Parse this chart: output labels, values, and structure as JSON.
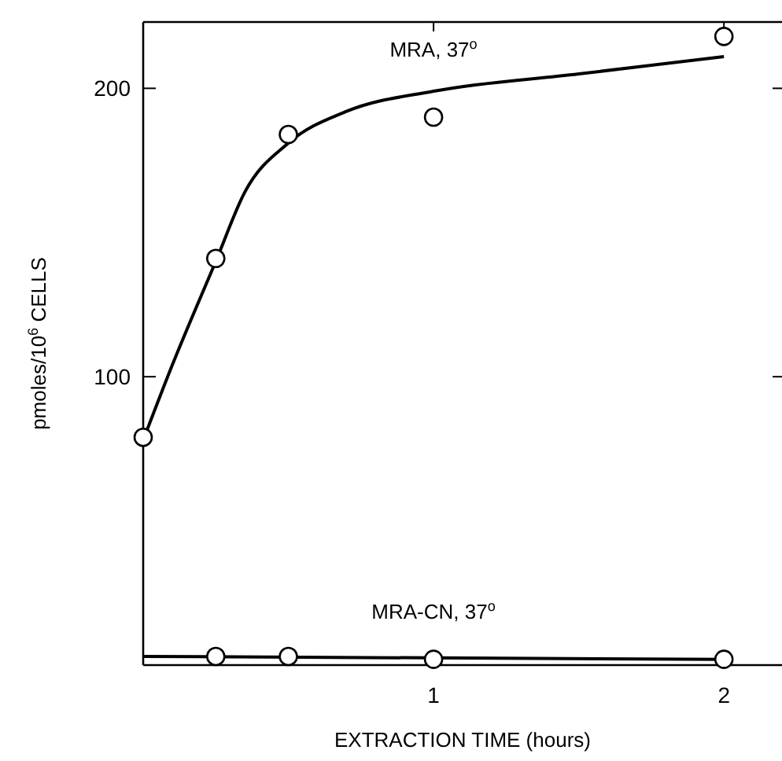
{
  "chart_data": {
    "type": "scatter",
    "xlabel": "EXTRACTION TIME (hours)",
    "ylabel": "pmoles/10$^{6}$ CELLS",
    "xlim": [
      0,
      2.2
    ],
    "ylim": [
      0,
      223
    ],
    "xticks": [
      1,
      2
    ],
    "yticks": [
      100,
      200
    ],
    "grid": false,
    "series": [
      {
        "name": "MRA, 37$^{o}$",
        "marker": "circle",
        "color": "#000000",
        "x": [
          0,
          0.25,
          0.5,
          1,
          2
        ],
        "values": [
          79,
          141,
          184,
          190,
          218
        ]
      },
      {
        "name": "MRA-CN, 37$^{o}$",
        "marker": "circle",
        "color": "#000000",
        "x": [
          0.25,
          0.5,
          1,
          2
        ],
        "values": [
          3,
          3,
          2,
          2
        ]
      },
      {
        "type": "line",
        "marker": "none",
        "color": "#000000",
        "x": [
          0,
          0.1,
          0.25,
          0.35,
          0.5,
          0.7,
          1,
          1.5,
          2
        ],
        "values": [
          78,
          104,
          140,
          164,
          181,
          192,
          199,
          205,
          211
        ]
      },
      {
        "type": "line",
        "marker": "none",
        "color": "#000000",
        "x": [
          0,
          2
        ],
        "values": [
          3,
          2
        ]
      }
    ]
  }
}
